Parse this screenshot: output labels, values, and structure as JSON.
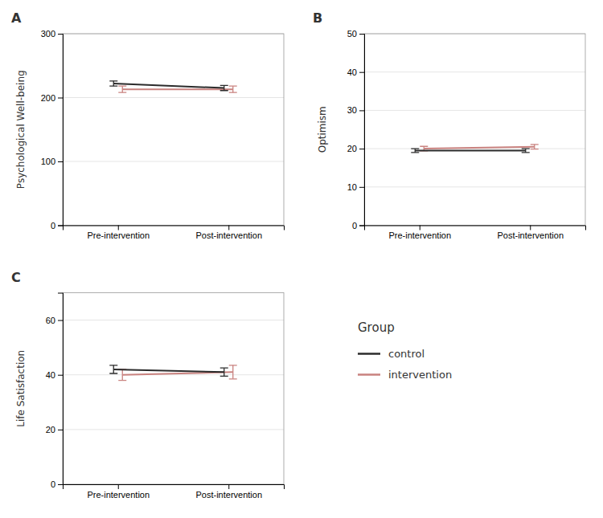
{
  "chart_data": [
    {
      "type": "line",
      "title": "A",
      "ylabel": "Psychological Well-being",
      "categories": [
        "Pre-intervention",
        "Post-intervention"
      ],
      "series": [
        {
          "name": "control",
          "color": "#2b2b2b",
          "values": [
            222,
            215
          ],
          "errors": [
            4,
            4
          ]
        },
        {
          "name": "intervention",
          "color": "#c9827f",
          "values": [
            213,
            213
          ],
          "errors": [
            5,
            5
          ]
        }
      ],
      "ylim": [
        0,
        300
      ],
      "yticks": [
        0,
        100,
        200,
        300
      ],
      "grid": true,
      "legend": "right",
      "legend_title": "Group"
    },
    {
      "type": "line",
      "title": "B",
      "ylabel": "Optimism",
      "categories": [
        "Pre-intervention",
        "Post-intervention"
      ],
      "series": [
        {
          "name": "control",
          "color": "#2b2b2b",
          "values": [
            19.5,
            19.5
          ],
          "errors": [
            0.5,
            0.5
          ]
        },
        {
          "name": "intervention",
          "color": "#c9827f",
          "values": [
            20.0,
            20.5
          ],
          "errors": [
            0.6,
            0.6
          ]
        }
      ],
      "ylim": [
        0,
        50
      ],
      "yticks": [
        0,
        10,
        20,
        30,
        40,
        50
      ],
      "grid": true
    },
    {
      "type": "line",
      "title": "C",
      "ylabel": "Life Satisfaction",
      "categories": [
        "Pre-intervention",
        "Post-intervention"
      ],
      "series": [
        {
          "name": "control",
          "color": "#2b2b2b",
          "values": [
            42,
            41
          ],
          "errors": [
            1.5,
            1.5
          ]
        },
        {
          "name": "intervention",
          "color": "#c9827f",
          "values": [
            40,
            41
          ],
          "errors": [
            2.0,
            2.5
          ]
        }
      ],
      "ylim": [
        0,
        70
      ],
      "yticks": [
        0,
        20,
        40,
        60
      ],
      "grid": true
    }
  ]
}
